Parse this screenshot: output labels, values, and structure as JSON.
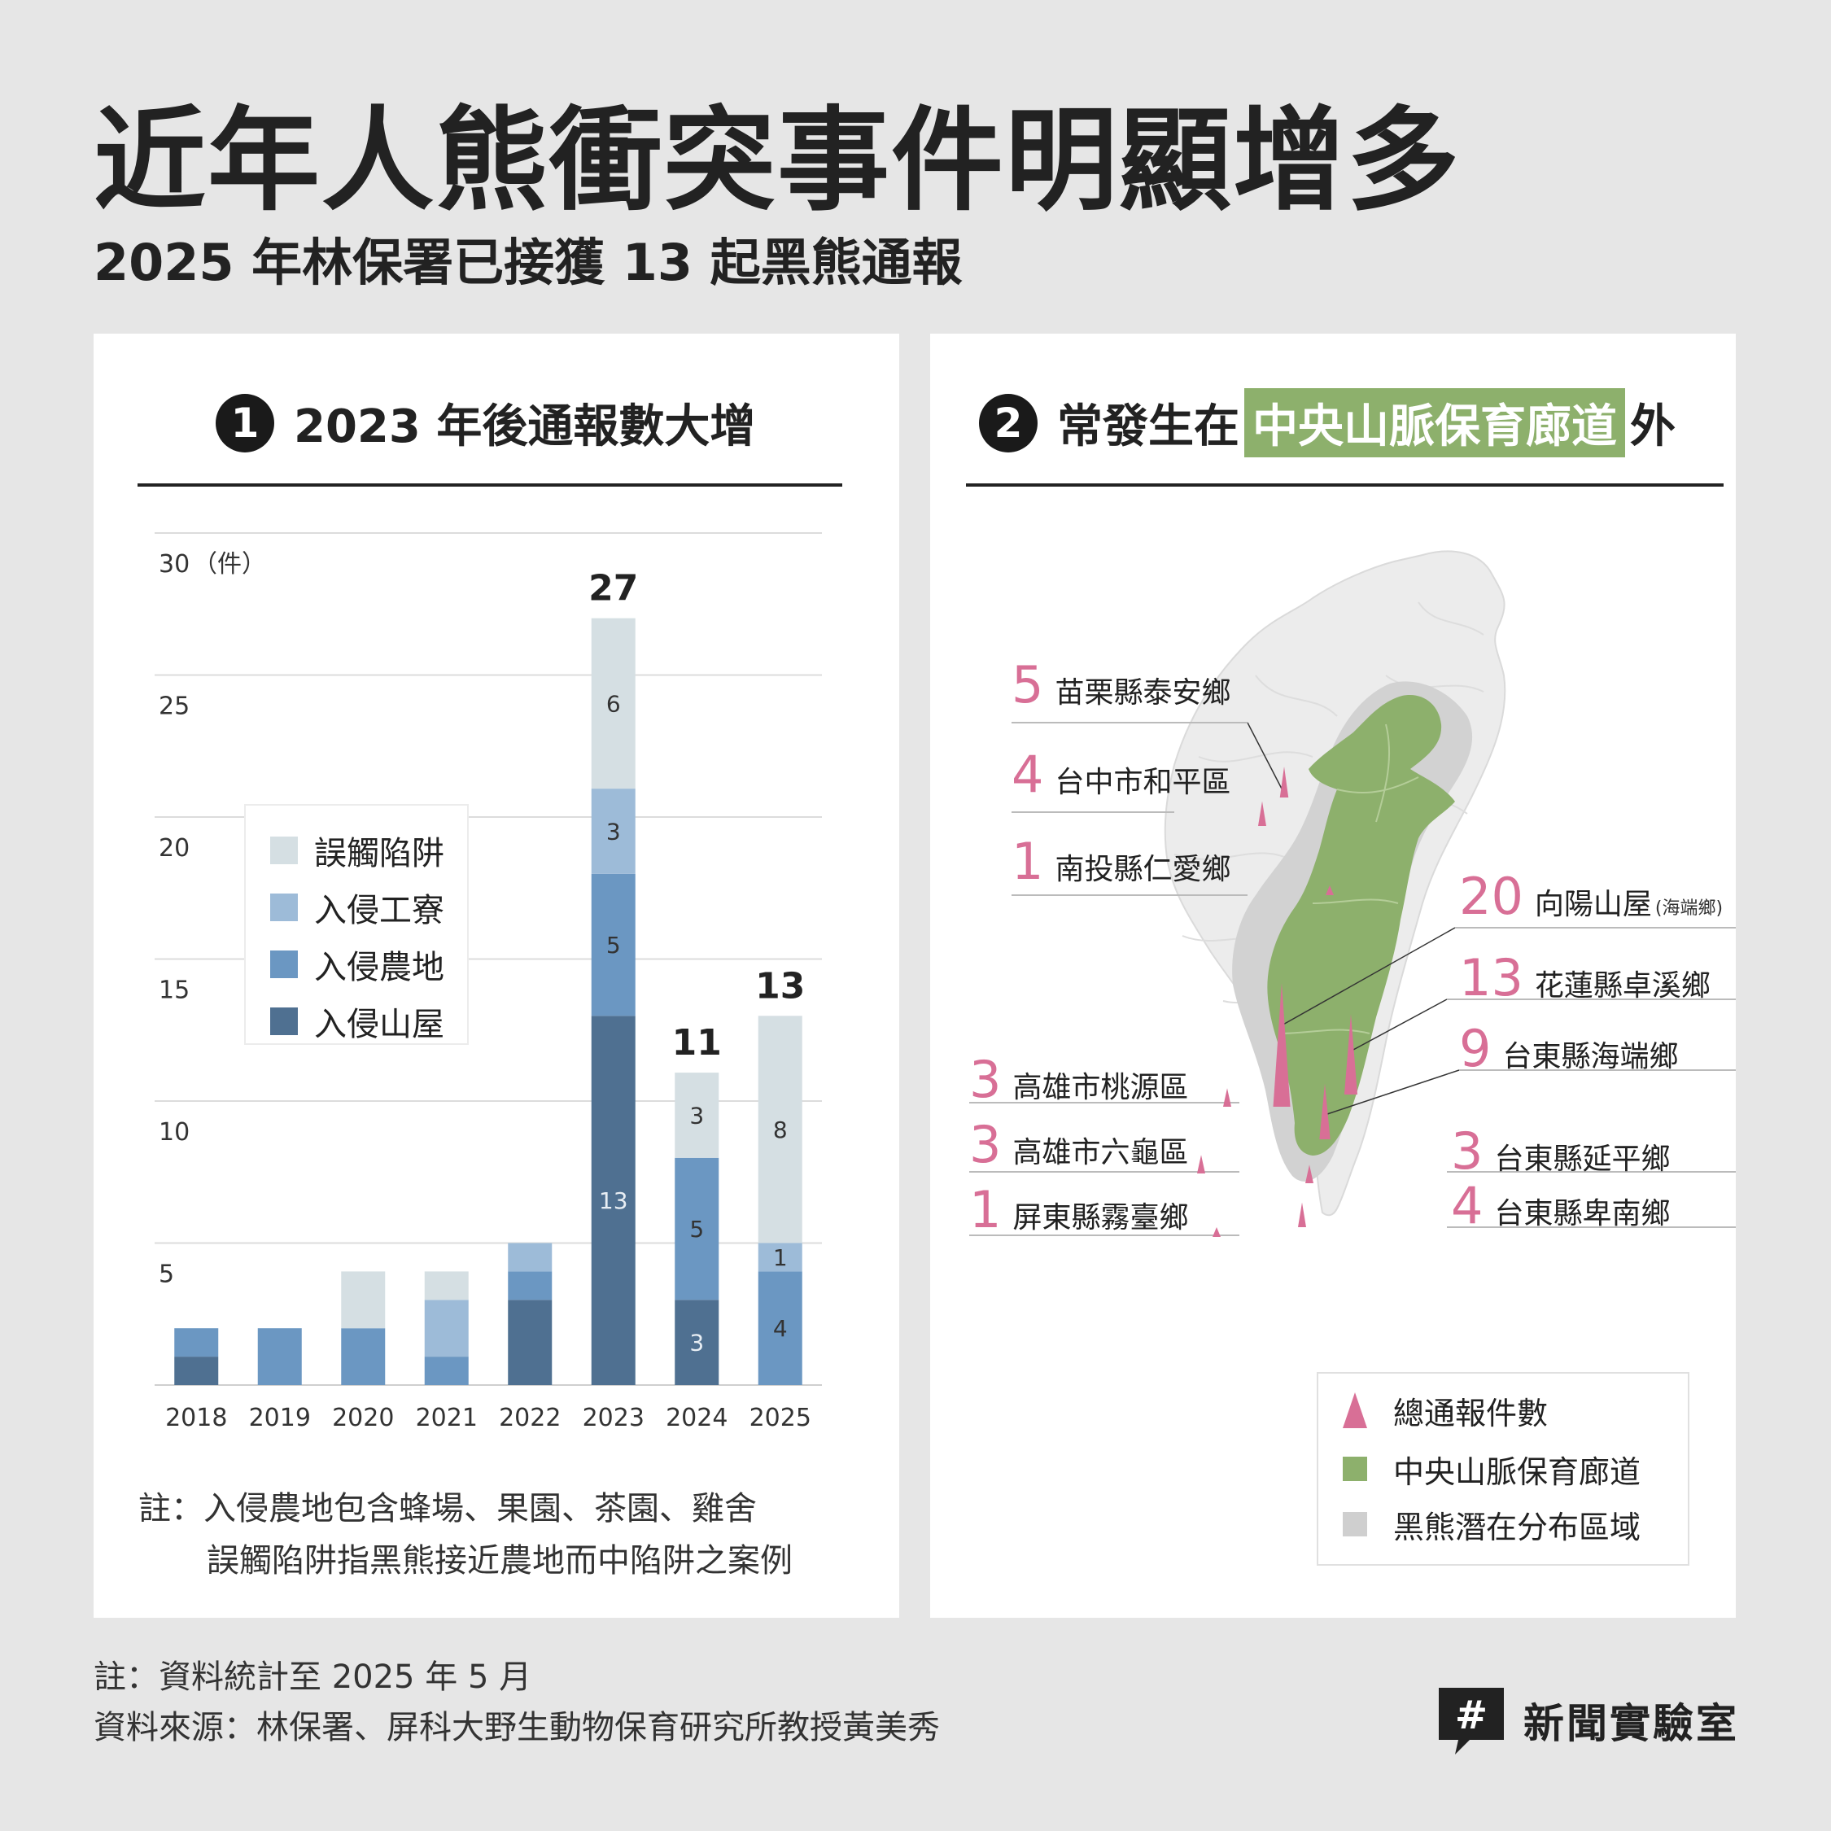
{
  "header": {
    "title": "近年人熊衝突事件明顯增多",
    "subtitle": "2025 年林保署已接獲 13 起黑熊通報"
  },
  "left_panel": {
    "number": "1",
    "heading": "2023 年後通報數大增",
    "unit_label": "（件）",
    "legend": [
      {
        "label": "誤觸陷阱",
        "color": "#d5dfe3"
      },
      {
        "label": "入侵工寮",
        "color": "#9dbbd8"
      },
      {
        "label": "入侵農地",
        "color": "#6b97c2"
      },
      {
        "label": "入侵山屋",
        "color": "#4f7091"
      }
    ],
    "note_prefix": "註：",
    "note_lines": [
      "入侵農地包含蜂場、果園、茶園、雞舍",
      "誤觸陷阱指黑熊接近農地而中陷阱之案例"
    ]
  },
  "chart_data": {
    "type": "bar",
    "stacked": true,
    "categories": [
      "2018",
      "2019",
      "2020",
      "2021",
      "2022",
      "2023",
      "2024",
      "2025"
    ],
    "series": [
      {
        "name": "入侵山屋",
        "values": [
          1,
          0,
          0,
          0,
          3,
          13,
          3,
          0
        ],
        "color": "#4f7091"
      },
      {
        "name": "入侵農地",
        "values": [
          1,
          2,
          2,
          1,
          1,
          5,
          5,
          4
        ],
        "color": "#6b97c2"
      },
      {
        "name": "入侵工寮",
        "values": [
          0,
          0,
          0,
          2,
          1,
          3,
          0,
          1
        ],
        "color": "#9dbbd8"
      },
      {
        "name": "誤觸陷阱",
        "values": [
          0,
          0,
          2,
          1,
          0,
          6,
          3,
          8
        ],
        "color": "#d5dfe3"
      }
    ],
    "segment_labels": {
      "2023": [
        "13",
        "5",
        "3",
        "6"
      ],
      "2024": [
        "3",
        "5",
        "",
        "3"
      ],
      "2025": [
        "",
        "4",
        "1",
        "8"
      ]
    },
    "total_labels": {
      "2023": "27",
      "2024": "11",
      "2025": "13"
    },
    "yticks": [
      "30",
      "25",
      "20",
      "15",
      "10",
      "5"
    ],
    "ylim": [
      0,
      30
    ],
    "grid": true,
    "legend_position": "top-left"
  },
  "right_panel": {
    "number": "2",
    "heading_prefix": "常發生在",
    "heading_highlight": "中央山脈保育廊道",
    "heading_suffix": "外",
    "sites": [
      {
        "count": "5",
        "name": "苗栗縣泰安鄉",
        "note": ""
      },
      {
        "count": "4",
        "name": "台中市和平區",
        "note": ""
      },
      {
        "count": "1",
        "name": "南投縣仁愛鄉",
        "note": ""
      },
      {
        "count": "20",
        "name": "向陽山屋",
        "note": "(海端鄉)"
      },
      {
        "count": "13",
        "name": "花蓮縣卓溪鄉",
        "note": ""
      },
      {
        "count": "9",
        "name": "台東縣海端鄉",
        "note": ""
      },
      {
        "count": "3",
        "name": "高雄市桃源區",
        "note": ""
      },
      {
        "count": "3",
        "name": "高雄市六龜區",
        "note": ""
      },
      {
        "count": "1",
        "name": "屏東縣霧臺鄉",
        "note": ""
      },
      {
        "count": "3",
        "name": "台東縣延平鄉",
        "note": ""
      },
      {
        "count": "4",
        "name": "台東縣卑南鄉",
        "note": ""
      }
    ],
    "legend": [
      {
        "label": "總通報件數",
        "color": "#d86f96"
      },
      {
        "label": "中央山脈保育廊道",
        "color": "#8db06c"
      },
      {
        "label": "黑熊潛在分布區域",
        "color": "#cfcfcf"
      }
    ]
  },
  "footer": {
    "note": "註：資料統計至 2025 年 5 月",
    "source": "資料來源：林保署、屏科大野生動物保育研究所教授黃美秀"
  },
  "brand": {
    "logo_text": "#",
    "name": "新聞實驗室"
  }
}
